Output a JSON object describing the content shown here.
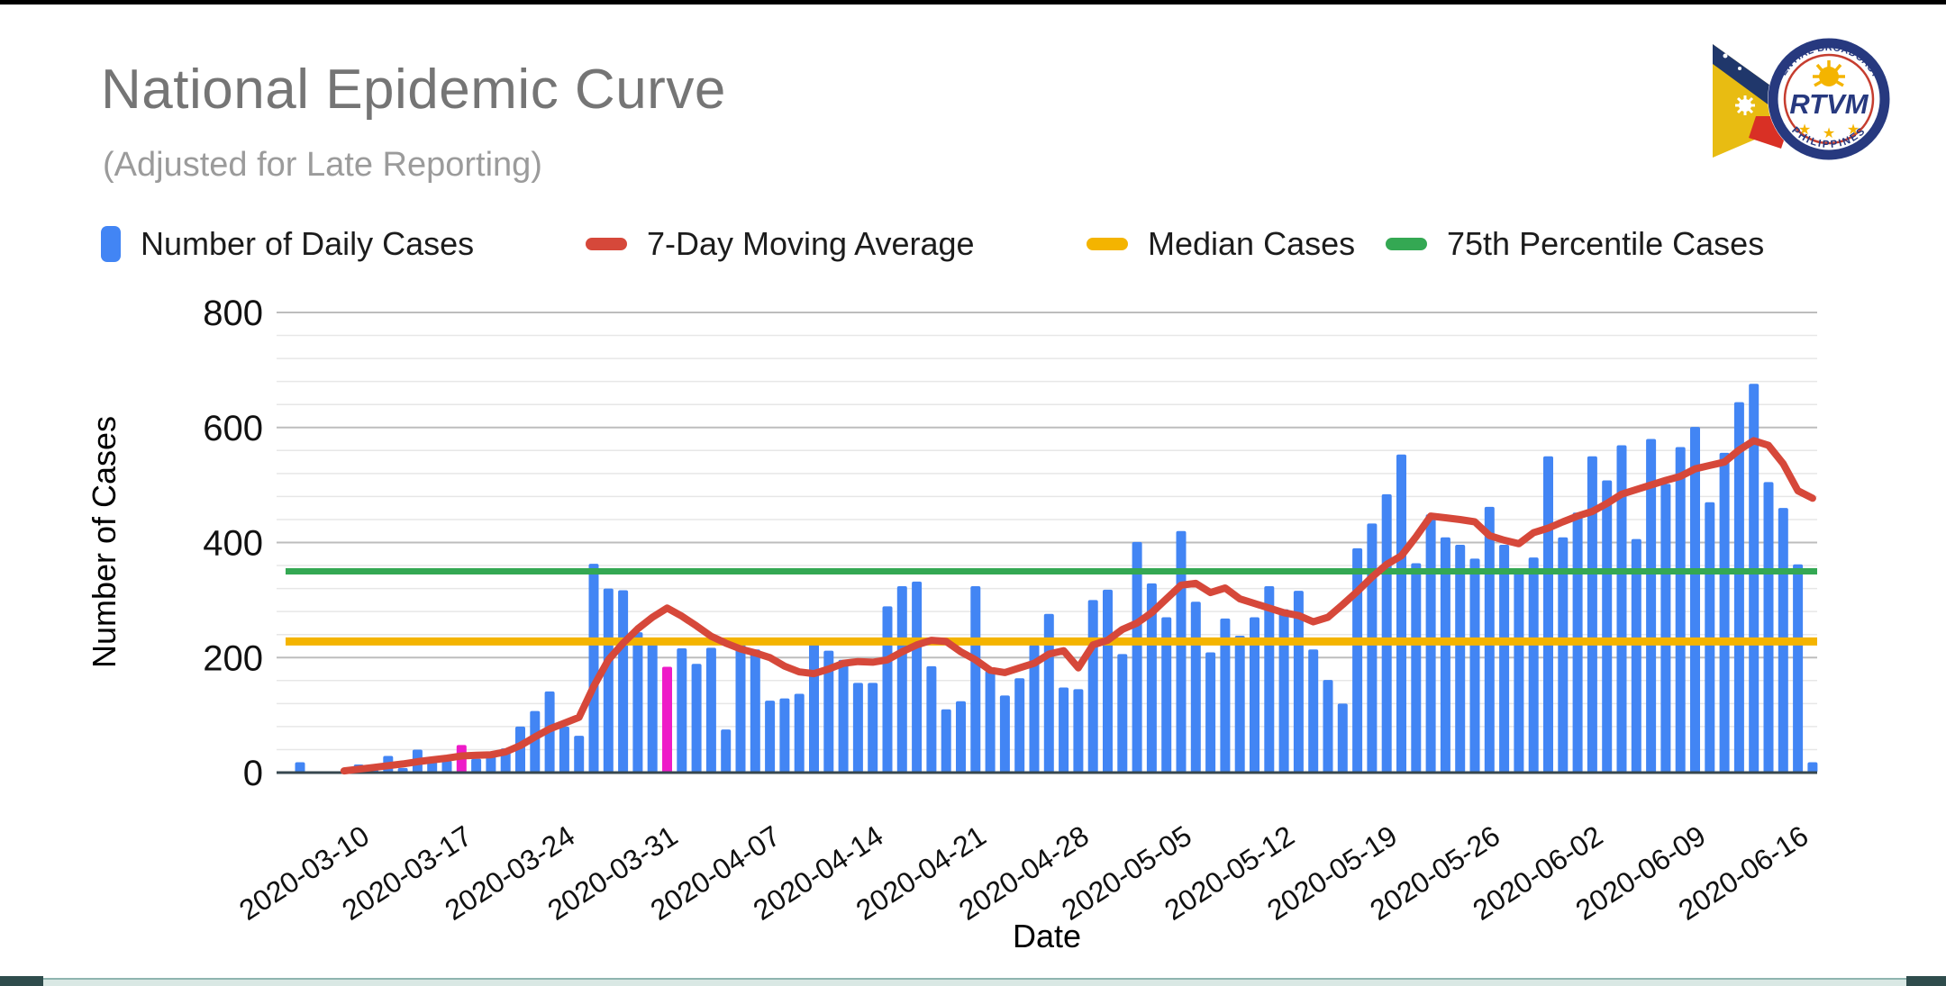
{
  "page": {
    "title": "National Epidemic Curve",
    "subtitle": "(Adjusted for Late Reporting)"
  },
  "legend": {
    "items": [
      {
        "label": "Number of Daily Cases",
        "marker": "bar",
        "color": "#4285F4"
      },
      {
        "label": "7-Day Moving Average",
        "marker": "dash",
        "color": "#D6483A"
      },
      {
        "label": "Median Cases",
        "marker": "dash",
        "color": "#F4B400"
      },
      {
        "label": "75th Percentile Cases",
        "marker": "dash",
        "color": "#34A853"
      }
    ]
  },
  "logo": {
    "name": "RTVM",
    "arc_top": "PRESIDENTIAL BROADCAST STAFF",
    "arc_bottom": "PHILIPPINES"
  },
  "chart_data": {
    "type": "bar",
    "title": "National Epidemic Curve",
    "subtitle": "(Adjusted for Late Reporting)",
    "xlabel": "Date",
    "ylabel": "Number of Cases",
    "ylim": [
      0,
      800
    ],
    "y_major_ticks": [
      0,
      200,
      400,
      600,
      800
    ],
    "y_minor_step": 40,
    "grid": true,
    "legend_position": "top",
    "x_tick_labels": [
      "2020-03-10",
      "2020-03-17",
      "2020-03-24",
      "2020-03-31",
      "2020-04-07",
      "2020-04-14",
      "2020-04-21",
      "2020-04-28",
      "2020-05-05",
      "2020-05-12",
      "2020-05-19",
      "2020-05-26",
      "2020-06-02",
      "2020-06-09",
      "2020-06-16"
    ],
    "dates": [
      "2020-03-06",
      "2020-03-07",
      "2020-03-08",
      "2020-03-09",
      "2020-03-10",
      "2020-03-11",
      "2020-03-12",
      "2020-03-13",
      "2020-03-14",
      "2020-03-15",
      "2020-03-16",
      "2020-03-17",
      "2020-03-18",
      "2020-03-19",
      "2020-03-20",
      "2020-03-21",
      "2020-03-22",
      "2020-03-23",
      "2020-03-24",
      "2020-03-25",
      "2020-03-26",
      "2020-03-27",
      "2020-03-28",
      "2020-03-29",
      "2020-03-30",
      "2020-03-31",
      "2020-04-01",
      "2020-04-02",
      "2020-04-03",
      "2020-04-04",
      "2020-04-05",
      "2020-04-06",
      "2020-04-07",
      "2020-04-08",
      "2020-04-09",
      "2020-04-10",
      "2020-04-11",
      "2020-04-12",
      "2020-04-13",
      "2020-04-14",
      "2020-04-15",
      "2020-04-16",
      "2020-04-17",
      "2020-04-18",
      "2020-04-19",
      "2020-04-20",
      "2020-04-21",
      "2020-04-22",
      "2020-04-23",
      "2020-04-24",
      "2020-04-25",
      "2020-04-26",
      "2020-04-27",
      "2020-04-28",
      "2020-04-29",
      "2020-04-30",
      "2020-05-01",
      "2020-05-02",
      "2020-05-03",
      "2020-05-04",
      "2020-05-05",
      "2020-05-06",
      "2020-05-07",
      "2020-05-08",
      "2020-05-09",
      "2020-05-10",
      "2020-05-11",
      "2020-05-12",
      "2020-05-13",
      "2020-05-14",
      "2020-05-15",
      "2020-05-16",
      "2020-05-17",
      "2020-05-18",
      "2020-05-19",
      "2020-05-20",
      "2020-05-21",
      "2020-05-22",
      "2020-05-23",
      "2020-05-24",
      "2020-05-25",
      "2020-05-26",
      "2020-05-27",
      "2020-05-28",
      "2020-05-29",
      "2020-05-30",
      "2020-05-31",
      "2020-06-01",
      "2020-06-02",
      "2020-06-03",
      "2020-06-04",
      "2020-06-05",
      "2020-06-06",
      "2020-06-07",
      "2020-06-08",
      "2020-06-09",
      "2020-06-10",
      "2020-06-11",
      "2020-06-12",
      "2020-06-13",
      "2020-06-14",
      "2020-06-15",
      "2020-06-16",
      "2020-06-17"
    ],
    "series": [
      {
        "name": "Number of Daily Cases",
        "type": "bar",
        "color": "#4285F4",
        "values": [
          18,
          0,
          0,
          0,
          14,
          5,
          29,
          8,
          40,
          19,
          21,
          48,
          24,
          29,
          42,
          80,
          107,
          141,
          80,
          64,
          363,
          320,
          317,
          244,
          223,
          184,
          216,
          189,
          217,
          75,
          225,
          214,
          125,
          129,
          137,
          223,
          212,
          196,
          156,
          156,
          289,
          324,
          332,
          185,
          110,
          124,
          324,
          177,
          134,
          164,
          222,
          276,
          148,
          145,
          300,
          318,
          206,
          401,
          329,
          270,
          420,
          297,
          209,
          268,
          238,
          270,
          324,
          284,
          316,
          214,
          161,
          120,
          390,
          433,
          484,
          553,
          364,
          449,
          409,
          396,
          372,
          462,
          396,
          348,
          374,
          550,
          409,
          452,
          550,
          508,
          569,
          406,
          580,
          502,
          566,
          601,
          470,
          556,
          644,
          676,
          505,
          460,
          362,
          18
        ]
      },
      {
        "name": "7-Day Moving Average",
        "type": "line",
        "color": "#D6483A",
        "values": [
          null,
          null,
          null,
          3,
          6,
          9,
          12,
          15,
          19,
          22,
          25,
          29,
          30,
          31,
          36,
          47,
          62,
          76,
          86,
          96,
          150,
          196,
          225,
          250,
          270,
          286,
          272,
          255,
          237,
          225,
          215,
          208,
          200,
          185,
          175,
          172,
          180,
          190,
          193,
          192,
          196,
          210,
          222,
          230,
          228,
          210,
          196,
          178,
          174,
          182,
          190,
          206,
          212,
          182,
          222,
          230,
          249,
          260,
          278,
          302,
          326,
          329,
          313,
          321,
          302,
          294,
          286,
          278,
          273,
          262,
          270,
          292,
          315,
          340,
          362,
          377,
          410,
          446,
          443,
          440,
          436,
          412,
          404,
          398,
          417,
          425,
          436,
          446,
          454,
          468,
          484,
          492,
          500,
          508,
          515,
          528,
          534,
          540,
          561,
          577,
          569,
          537,
          490,
          477
        ]
      },
      {
        "name": "Median Cases",
        "type": "hline",
        "color": "#F4B400",
        "value": 228
      },
      {
        "name": "75th Percentile Cases",
        "type": "hline",
        "color": "#34A853",
        "value": 350
      }
    ],
    "highlighted_dates": [
      "2020-03-17",
      "2020-03-31"
    ],
    "highlight_color": "#EE1BC8"
  }
}
